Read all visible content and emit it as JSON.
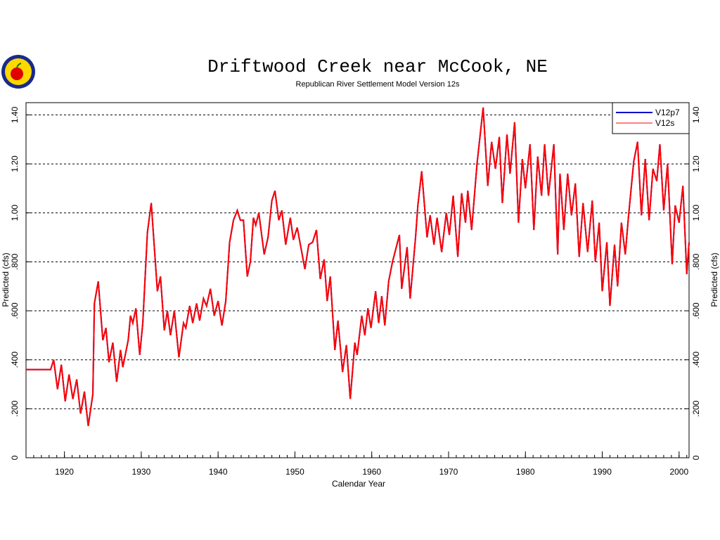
{
  "chart_data": {
    "type": "line",
    "title": "Driftwood Creek near McCook, NE",
    "subtitle": "Republican River Settlement Model Version 12s",
    "x_label": "Calendar Year",
    "y_label": "Predicted (cfs)",
    "xlim": [
      1915,
      2001.3
    ],
    "xticks": [
      1920,
      1930,
      1940,
      1950,
      1960,
      1970,
      1980,
      1990,
      2000
    ],
    "ylim": [
      0,
      1.45
    ],
    "yticks": [
      0,
      {
        "value": 0.2,
        "label": ".200"
      },
      {
        "value": 0.4,
        "label": ".400"
      },
      {
        "value": 0.6,
        "label": ".600"
      },
      {
        "value": 0.8,
        "label": ".800"
      },
      {
        "value": 1.0,
        "label": "1.00"
      },
      {
        "value": 1.2,
        "label": "1.20"
      },
      {
        "value": 1.4,
        "label": "1.40"
      }
    ],
    "grid": true,
    "legend": "top-right",
    "x": [
      1915,
      1918.2,
      1918.6,
      1919.1,
      1919.6,
      1920.1,
      1920.6,
      1921.1,
      1921.6,
      1922.1,
      1922.6,
      1923.1,
      1923.7,
      1923.9,
      1924.4,
      1925.0,
      1925.4,
      1925.8,
      1926.3,
      1926.8,
      1927.3,
      1927.6,
      1928.3,
      1928.6,
      1928.9,
      1929.3,
      1929.8,
      1930.2,
      1930.8,
      1931.3,
      1931.7,
      1932.1,
      1932.5,
      1933.0,
      1933.4,
      1933.8,
      1934.3,
      1934.9,
      1935.5,
      1935.8,
      1936.3,
      1936.7,
      1937.2,
      1937.6,
      1938.1,
      1938.5,
      1939.0,
      1939.5,
      1940.0,
      1940.5,
      1941.0,
      1941.5,
      1942.0,
      1942.5,
      1942.9,
      1943.3,
      1943.8,
      1944.2,
      1944.6,
      1944.9,
      1945.3,
      1946.0,
      1946.5,
      1947.0,
      1947.4,
      1947.9,
      1948.3,
      1948.8,
      1949.4,
      1949.8,
      1950.3,
      1951.3,
      1951.8,
      1952.3,
      1952.8,
      1953.3,
      1953.8,
      1954.2,
      1954.6,
      1955.2,
      1955.6,
      1956.2,
      1956.7,
      1957.2,
      1957.8,
      1958.1,
      1958.7,
      1959.1,
      1959.5,
      1959.9,
      1960.5,
      1960.9,
      1961.3,
      1961.7,
      1962.2,
      1962.7,
      1963.6,
      1963.9,
      1964.6,
      1965.0,
      1965.7,
      1966.0,
      1966.5,
      1967.2,
      1967.6,
      1968.1,
      1968.5,
      1969.1,
      1969.7,
      1970.1,
      1970.6,
      1971.2,
      1971.7,
      1972.2,
      1972.5,
      1973.0,
      1973.7,
      1974.5,
      1975.1,
      1975.6,
      1976.1,
      1976.6,
      1977.0,
      1977.6,
      1978.0,
      1978.6,
      1979.1,
      1979.6,
      1980.0,
      1980.6,
      1981.1,
      1981.6,
      1982.1,
      1982.5,
      1983.0,
      1983.7,
      1984.2,
      1984.5,
      1985.0,
      1985.5,
      1986.0,
      1986.5,
      1987.0,
      1987.5,
      1988.1,
      1988.7,
      1989.1,
      1989.6,
      1990.0,
      1990.6,
      1991.0,
      1991.6,
      1992.0,
      1992.5,
      1993.0,
      1993.4,
      1994.1,
      1994.6,
      1995.1,
      1995.6,
      1996.1,
      1996.6,
      1997.1,
      1997.5,
      1998.0,
      1998.5,
      1999.1,
      1999.5,
      2000.0,
      2000.5,
      2001.0,
      2001.3
    ],
    "series": [
      {
        "name": "V12p7",
        "color": "#0000cc",
        "values": [
          0.36,
          0.36,
          0.4,
          0.28,
          0.38,
          0.23,
          0.34,
          0.24,
          0.32,
          0.18,
          0.27,
          0.13,
          0.26,
          0.63,
          0.72,
          0.48,
          0.53,
          0.39,
          0.47,
          0.31,
          0.44,
          0.37,
          0.48,
          0.58,
          0.55,
          0.61,
          0.42,
          0.55,
          0.92,
          1.04,
          0.86,
          0.68,
          0.74,
          0.52,
          0.6,
          0.5,
          0.6,
          0.41,
          0.55,
          0.53,
          0.62,
          0.55,
          0.63,
          0.56,
          0.65,
          0.62,
          0.69,
          0.58,
          0.64,
          0.54,
          0.64,
          0.88,
          0.97,
          1.01,
          0.97,
          0.97,
          0.74,
          0.8,
          0.98,
          0.95,
          1.0,
          0.83,
          0.9,
          1.05,
          1.09,
          0.97,
          1.01,
          0.87,
          0.98,
          0.89,
          0.94,
          0.77,
          0.87,
          0.88,
          0.93,
          0.73,
          0.81,
          0.64,
          0.74,
          0.44,
          0.56,
          0.35,
          0.46,
          0.24,
          0.47,
          0.42,
          0.58,
          0.5,
          0.61,
          0.53,
          0.68,
          0.55,
          0.66,
          0.54,
          0.72,
          0.8,
          0.91,
          0.69,
          0.86,
          0.65,
          0.9,
          1.03,
          1.17,
          0.9,
          0.99,
          0.87,
          0.98,
          0.84,
          1.0,
          0.91,
          1.07,
          0.82,
          1.08,
          0.96,
          1.09,
          0.93,
          1.2,
          1.43,
          1.11,
          1.29,
          1.18,
          1.31,
          1.04,
          1.32,
          1.16,
          1.37,
          0.96,
          1.22,
          1.1,
          1.28,
          0.93,
          1.23,
          1.07,
          1.28,
          1.07,
          1.28,
          0.83,
          1.16,
          0.93,
          1.16,
          0.99,
          1.12,
          0.82,
          1.04,
          0.84,
          1.05,
          0.8,
          0.96,
          0.68,
          0.88,
          0.62,
          0.87,
          0.7,
          0.96,
          0.83,
          0.98,
          1.21,
          1.29,
          0.99,
          1.22,
          0.97,
          1.18,
          1.13,
          1.28,
          1.01,
          1.2,
          0.79,
          1.03,
          0.96,
          1.11,
          0.75,
          0.88
        ]
      },
      {
        "name": "V12s",
        "color": "#ff0000",
        "values": [
          0.36,
          0.36,
          0.4,
          0.28,
          0.38,
          0.23,
          0.34,
          0.24,
          0.32,
          0.18,
          0.27,
          0.13,
          0.26,
          0.63,
          0.72,
          0.48,
          0.53,
          0.39,
          0.47,
          0.31,
          0.44,
          0.37,
          0.48,
          0.58,
          0.55,
          0.61,
          0.42,
          0.55,
          0.92,
          1.04,
          0.86,
          0.68,
          0.74,
          0.52,
          0.6,
          0.5,
          0.6,
          0.41,
          0.55,
          0.53,
          0.62,
          0.55,
          0.63,
          0.56,
          0.65,
          0.62,
          0.69,
          0.58,
          0.64,
          0.54,
          0.64,
          0.88,
          0.97,
          1.01,
          0.97,
          0.97,
          0.74,
          0.8,
          0.98,
          0.95,
          1.0,
          0.83,
          0.9,
          1.05,
          1.09,
          0.97,
          1.01,
          0.87,
          0.98,
          0.89,
          0.94,
          0.77,
          0.87,
          0.88,
          0.93,
          0.73,
          0.81,
          0.64,
          0.74,
          0.44,
          0.56,
          0.35,
          0.46,
          0.24,
          0.47,
          0.42,
          0.58,
          0.5,
          0.61,
          0.53,
          0.68,
          0.55,
          0.66,
          0.54,
          0.72,
          0.8,
          0.91,
          0.69,
          0.86,
          0.65,
          0.9,
          1.03,
          1.17,
          0.9,
          0.99,
          0.87,
          0.98,
          0.84,
          1.0,
          0.91,
          1.07,
          0.82,
          1.08,
          0.96,
          1.09,
          0.93,
          1.2,
          1.43,
          1.11,
          1.29,
          1.18,
          1.31,
          1.04,
          1.32,
          1.16,
          1.37,
          0.96,
          1.22,
          1.1,
          1.28,
          0.93,
          1.23,
          1.07,
          1.28,
          1.07,
          1.28,
          0.83,
          1.16,
          0.93,
          1.16,
          0.99,
          1.12,
          0.82,
          1.04,
          0.84,
          1.05,
          0.8,
          0.96,
          0.68,
          0.88,
          0.62,
          0.87,
          0.7,
          0.96,
          0.83,
          0.98,
          1.21,
          1.29,
          0.99,
          1.22,
          0.97,
          1.18,
          1.13,
          1.28,
          1.01,
          1.2,
          0.79,
          1.03,
          0.96,
          1.11,
          0.75,
          0.88
        ]
      }
    ]
  }
}
